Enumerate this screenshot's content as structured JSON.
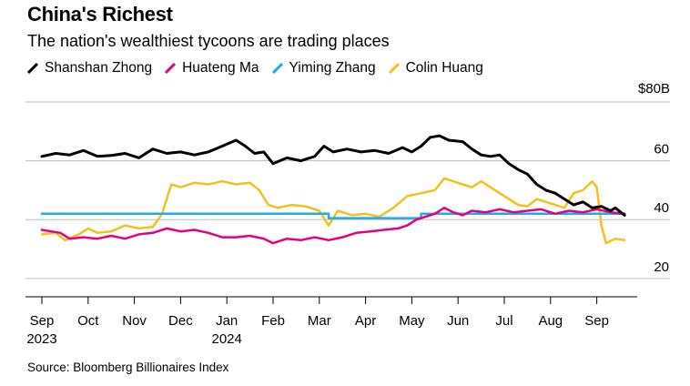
{
  "header": {
    "title": "China's Richest",
    "subtitle": "The nation's wealthiest tycoons are trading places"
  },
  "footer": {
    "source": "Source: Bloomberg Billionaires Index"
  },
  "chart_data": {
    "type": "line",
    "title": "China's Richest",
    "subtitle": "The nation's wealthiest tycoons are trading places",
    "y_unit_label": "$80B",
    "ylim": [
      15,
      80
    ],
    "y_ticks": [
      20,
      40,
      60,
      80
    ],
    "y_tick_labels": [
      "20",
      "40",
      "60",
      "$80B"
    ],
    "y_axis_side": "right",
    "grid": true,
    "legend_position": "top-left",
    "x_ticks": [
      {
        "m": 0,
        "label": "Sep",
        "sub": "2023"
      },
      {
        "m": 1,
        "label": "Oct",
        "sub": ""
      },
      {
        "m": 2,
        "label": "Nov",
        "sub": ""
      },
      {
        "m": 3,
        "label": "Dec",
        "sub": ""
      },
      {
        "m": 4,
        "label": "Jan",
        "sub": "2024"
      },
      {
        "m": 5,
        "label": "Feb",
        "sub": ""
      },
      {
        "m": 6,
        "label": "Mar",
        "sub": ""
      },
      {
        "m": 7,
        "label": "Apr",
        "sub": ""
      },
      {
        "m": 8,
        "label": "May",
        "sub": ""
      },
      {
        "m": 9,
        "label": "Jun",
        "sub": ""
      },
      {
        "m": 10,
        "label": "Jul",
        "sub": ""
      },
      {
        "m": 11,
        "label": "Aug",
        "sub": ""
      },
      {
        "m": 12,
        "label": "Sep",
        "sub": ""
      }
    ],
    "x_unit": "months since Sep 2023",
    "series": [
      {
        "name": "Shanshan Zhong",
        "color": "#000000",
        "points": [
          [
            0.0,
            61.5
          ],
          [
            0.3,
            62.5
          ],
          [
            0.6,
            62.0
          ],
          [
            0.9,
            63.5
          ],
          [
            1.2,
            61.5
          ],
          [
            1.5,
            61.8
          ],
          [
            1.8,
            62.5
          ],
          [
            2.1,
            61.0
          ],
          [
            2.4,
            64.0
          ],
          [
            2.7,
            62.5
          ],
          [
            3.0,
            63.0
          ],
          [
            3.3,
            62.0
          ],
          [
            3.6,
            63.0
          ],
          [
            3.9,
            65.0
          ],
          [
            4.2,
            67.0
          ],
          [
            4.4,
            65.0
          ],
          [
            4.6,
            62.5
          ],
          [
            4.8,
            63.0
          ],
          [
            5.0,
            59.0
          ],
          [
            5.3,
            61.0
          ],
          [
            5.6,
            60.0
          ],
          [
            5.9,
            61.5
          ],
          [
            6.1,
            65.0
          ],
          [
            6.3,
            63.0
          ],
          [
            6.6,
            64.0
          ],
          [
            6.9,
            63.0
          ],
          [
            7.2,
            63.5
          ],
          [
            7.5,
            62.5
          ],
          [
            7.8,
            64.5
          ],
          [
            8.0,
            63.0
          ],
          [
            8.2,
            65.0
          ],
          [
            8.4,
            68.0
          ],
          [
            8.6,
            68.5
          ],
          [
            8.8,
            67.0
          ],
          [
            9.1,
            66.5
          ],
          [
            9.3,
            64.0
          ],
          [
            9.5,
            62.0
          ],
          [
            9.7,
            61.5
          ],
          [
            9.9,
            62.0
          ],
          [
            10.1,
            59.0
          ],
          [
            10.3,
            57.0
          ],
          [
            10.5,
            55.5
          ],
          [
            10.7,
            52.0
          ],
          [
            10.9,
            50.0
          ],
          [
            11.1,
            49.0
          ],
          [
            11.3,
            47.0
          ],
          [
            11.5,
            45.0
          ],
          [
            11.7,
            46.0
          ],
          [
            11.9,
            44.0
          ],
          [
            12.1,
            44.5
          ],
          [
            12.3,
            43.0
          ],
          [
            12.4,
            44.0
          ],
          [
            12.6,
            41.5
          ]
        ]
      },
      {
        "name": "Huateng Ma",
        "color": "#E5007E",
        "points": [
          [
            0.0,
            36.5
          ],
          [
            0.2,
            36.0
          ],
          [
            0.4,
            35.5
          ],
          [
            0.6,
            33.5
          ],
          [
            0.9,
            34.0
          ],
          [
            1.2,
            33.5
          ],
          [
            1.5,
            34.5
          ],
          [
            1.8,
            33.5
          ],
          [
            2.1,
            35.0
          ],
          [
            2.4,
            35.5
          ],
          [
            2.7,
            37.0
          ],
          [
            3.0,
            36.0
          ],
          [
            3.3,
            36.5
          ],
          [
            3.6,
            35.5
          ],
          [
            3.9,
            34.0
          ],
          [
            4.2,
            34.0
          ],
          [
            4.5,
            34.5
          ],
          [
            4.8,
            33.5
          ],
          [
            5.0,
            32.0
          ],
          [
            5.3,
            33.5
          ],
          [
            5.6,
            33.0
          ],
          [
            5.9,
            34.0
          ],
          [
            6.2,
            33.0
          ],
          [
            6.5,
            34.0
          ],
          [
            6.8,
            35.5
          ],
          [
            7.1,
            36.0
          ],
          [
            7.4,
            36.5
          ],
          [
            7.7,
            37.0
          ],
          [
            7.9,
            38.0
          ],
          [
            8.1,
            40.0
          ],
          [
            8.3,
            41.0
          ],
          [
            8.5,
            42.0
          ],
          [
            8.7,
            44.0
          ],
          [
            8.9,
            42.5
          ],
          [
            9.1,
            41.5
          ],
          [
            9.3,
            43.0
          ],
          [
            9.6,
            42.5
          ],
          [
            9.9,
            43.5
          ],
          [
            10.2,
            42.5
          ],
          [
            10.5,
            43.0
          ],
          [
            10.8,
            43.5
          ],
          [
            11.1,
            42.0
          ],
          [
            11.4,
            43.0
          ],
          [
            11.7,
            42.5
          ],
          [
            12.0,
            43.5
          ],
          [
            12.3,
            42.5
          ],
          [
            12.6,
            42.0
          ]
        ]
      },
      {
        "name": "Yiming Zhang",
        "color": "#1EA9F0",
        "points": [
          [
            0.0,
            42.0
          ],
          [
            6.2,
            42.0
          ],
          [
            6.2,
            40.5
          ],
          [
            8.2,
            40.5
          ],
          [
            8.2,
            42.0
          ],
          [
            12.6,
            42.0
          ]
        ]
      },
      {
        "name": "Colin Huang",
        "color": "#F4C11B",
        "points": [
          [
            0.0,
            35.0
          ],
          [
            0.3,
            35.5
          ],
          [
            0.5,
            33.0
          ],
          [
            0.8,
            35.0
          ],
          [
            1.0,
            37.0
          ],
          [
            1.2,
            35.5
          ],
          [
            1.5,
            36.0
          ],
          [
            1.8,
            38.0
          ],
          [
            2.1,
            37.0
          ],
          [
            2.4,
            37.5
          ],
          [
            2.6,
            42.0
          ],
          [
            2.8,
            52.0
          ],
          [
            3.0,
            51.0
          ],
          [
            3.3,
            52.5
          ],
          [
            3.6,
            52.0
          ],
          [
            3.9,
            53.0
          ],
          [
            4.2,
            52.0
          ],
          [
            4.5,
            52.5
          ],
          [
            4.7,
            50.0
          ],
          [
            4.9,
            45.0
          ],
          [
            5.1,
            44.0
          ],
          [
            5.4,
            45.0
          ],
          [
            5.7,
            44.5
          ],
          [
            6.0,
            43.0
          ],
          [
            6.2,
            38.0
          ],
          [
            6.4,
            43.0
          ],
          [
            6.7,
            41.5
          ],
          [
            7.0,
            42.0
          ],
          [
            7.3,
            41.0
          ],
          [
            7.6,
            44.0
          ],
          [
            7.9,
            48.0
          ],
          [
            8.2,
            49.0
          ],
          [
            8.5,
            50.0
          ],
          [
            8.7,
            54.0
          ],
          [
            8.9,
            53.0
          ],
          [
            9.1,
            52.0
          ],
          [
            9.3,
            51.0
          ],
          [
            9.5,
            53.0
          ],
          [
            9.7,
            51.0
          ],
          [
            9.9,
            49.0
          ],
          [
            10.1,
            47.0
          ],
          [
            10.3,
            45.0
          ],
          [
            10.5,
            44.5
          ],
          [
            10.7,
            47.0
          ],
          [
            10.9,
            46.0
          ],
          [
            11.1,
            45.0
          ],
          [
            11.3,
            44.0
          ],
          [
            11.5,
            49.0
          ],
          [
            11.7,
            50.0
          ],
          [
            11.9,
            53.0
          ],
          [
            12.0,
            51.0
          ],
          [
            12.1,
            38.0
          ],
          [
            12.2,
            32.0
          ],
          [
            12.4,
            33.5
          ],
          [
            12.6,
            33.0
          ]
        ]
      }
    ]
  }
}
